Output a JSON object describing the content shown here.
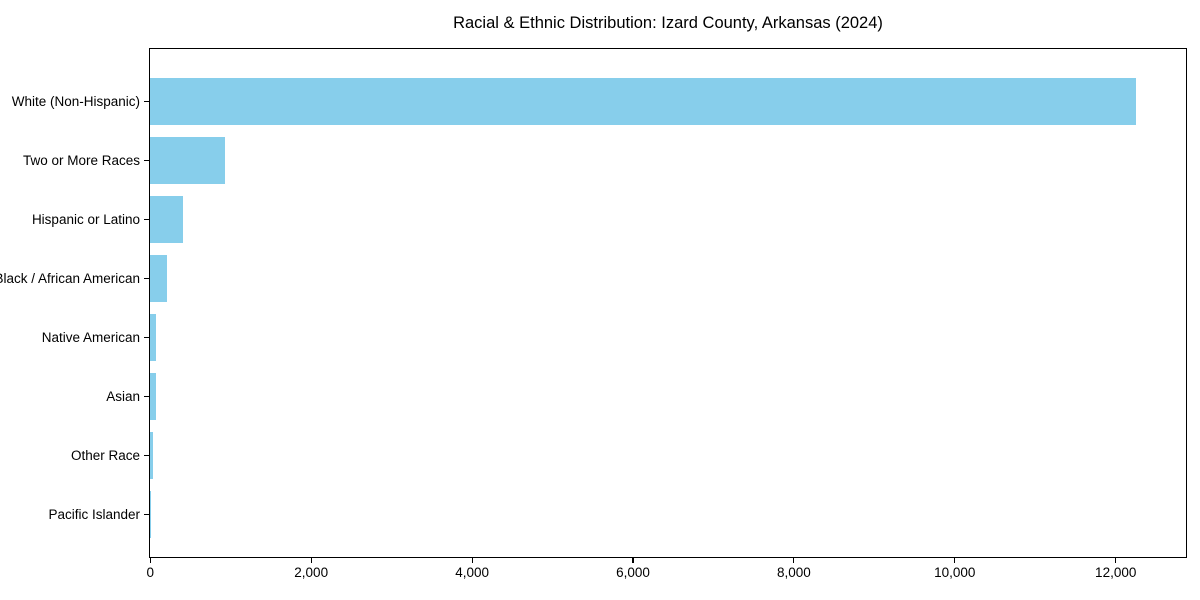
{
  "chart_data": {
    "type": "bar",
    "orientation": "horizontal",
    "title": "Racial & Ethnic Distribution: Izard County, Arkansas (2024)",
    "categories": [
      "White (Non-Hispanic)",
      "Two or More Races",
      "Hispanic or Latino",
      "Black / African American",
      "Native American",
      "Asian",
      "Other Race",
      "Pacific Islander"
    ],
    "values": [
      12250,
      935,
      415,
      210,
      80,
      70,
      35,
      5
    ],
    "xlabel": "",
    "ylabel": "",
    "xlim": [
      0,
      12870
    ],
    "x_ticks": [
      0,
      2000,
      4000,
      6000,
      8000,
      10000,
      12000
    ],
    "x_tick_labels": [
      "0",
      "2,000",
      "4,000",
      "6,000",
      "8,000",
      "10,000",
      "12,000"
    ],
    "bar_color": "#87CEEB",
    "spine_color": "#000000",
    "grid": false,
    "legend": null
  }
}
